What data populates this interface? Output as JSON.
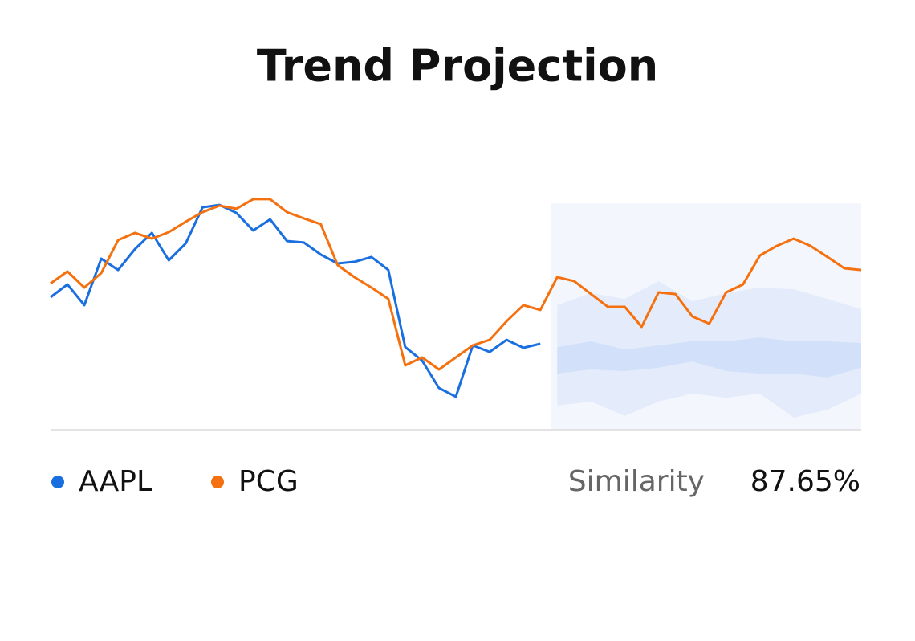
{
  "chart_data": {
    "type": "line",
    "title": "Trend Projection",
    "x": [
      0,
      1,
      2,
      3,
      4,
      5,
      6,
      7,
      8,
      9,
      10,
      11,
      12,
      13,
      14,
      15,
      16,
      17,
      18,
      19,
      20,
      21,
      22,
      23,
      24,
      25,
      26,
      27,
      28,
      29,
      30,
      31,
      32,
      33,
      34,
      35,
      36,
      37,
      38,
      39,
      40,
      41,
      42,
      43,
      44,
      45,
      46,
      47,
      48
    ],
    "xlim": [
      0,
      48
    ],
    "ylim": [
      0,
      94
    ],
    "series": [
      {
        "name": "AAPL",
        "color": "#1a6fe0",
        "values": [
          55,
          60.3,
          51.7,
          71,
          66.3,
          75,
          81.7,
          70.3,
          77.3,
          92.3,
          93.3,
          90,
          82.7,
          87.3,
          78.3,
          77.7,
          72.7,
          69,
          69.7,
          71.7,
          66.3,
          34.3,
          28.7,
          17.3,
          13.7,
          35,
          32.3,
          37.3,
          34,
          35.7,
          null,
          null,
          null,
          null,
          null,
          null,
          null,
          null,
          null,
          null,
          null,
          null,
          null,
          null,
          null,
          null,
          null,
          null,
          null
        ]
      },
      {
        "name": "PCG",
        "color": "#f5700f",
        "values": [
          60.7,
          65.7,
          59,
          65,
          78.7,
          81.7,
          79.3,
          82,
          86.3,
          90.3,
          93,
          91.7,
          95.7,
          95.7,
          90.3,
          87.7,
          85.3,
          68.3,
          63.3,
          59,
          54.3,
          26.7,
          30,
          25,
          30,
          35,
          37.3,
          45,
          51.7,
          49.7,
          63.3,
          61.7,
          56.3,
          51,
          51,
          42.7,
          57,
          56.3,
          47,
          44,
          57,
          60.3,
          72.3,
          76.3,
          79.3,
          76.3,
          71.7,
          67,
          66.3
        ]
      }
    ],
    "projection_x": [
      29.6,
      48
    ],
    "projection_color": "#f3f6fd",
    "bands": [
      {
        "color": "#e4ecfb",
        "x": [
          30,
          32,
          34,
          36,
          38,
          40,
          42,
          44,
          46,
          48
        ],
        "upper": [
          51.7,
          56.7,
          54.3,
          61.7,
          53.3,
          56.7,
          59,
          58.3,
          54.3,
          50
        ],
        "lower": [
          10,
          11.7,
          5.7,
          11.7,
          15,
          13.3,
          15,
          5,
          8.3,
          15
        ]
      },
      {
        "color": "#d2e1f9",
        "x": [
          30,
          32,
          34,
          36,
          38,
          40,
          42,
          44,
          46,
          48
        ],
        "upper": [
          34.3,
          36.7,
          33.3,
          35,
          36.7,
          36.7,
          38.3,
          36.7,
          36.7,
          36
        ],
        "lower": [
          23.3,
          25,
          24.3,
          25.7,
          28.3,
          24.3,
          23.3,
          23.3,
          21.7,
          25.7
        ]
      }
    ],
    "similarity_label": "Similarity",
    "similarity_value": "87.65%"
  }
}
